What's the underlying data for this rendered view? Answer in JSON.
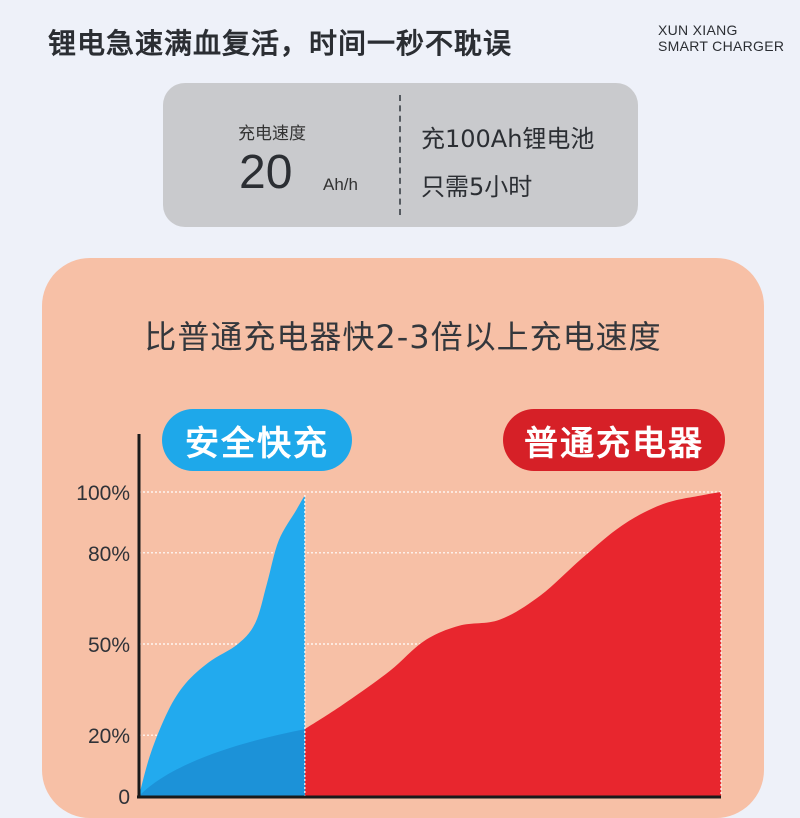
{
  "header": {
    "headline": "锂电急速满血复活，时间一秒不耽误",
    "brand_line1": "XUN XIANG",
    "brand_line2": "SMART CHARGER"
  },
  "spec": {
    "label": "充电速度",
    "value": "20",
    "unit": "Ah/h",
    "line1": "充100Ah锂电池",
    "line2": "只需5小时"
  },
  "panel": {
    "title": "比普通充电器快2-3倍以上充电速度",
    "pill_fast": "安全快充",
    "pill_normal": "普通充电器"
  },
  "colors": {
    "fast": "#22aaee",
    "fast_inner": "#1c92d8",
    "normal": "#e8262e",
    "panel": "#f7c0a6",
    "grid": "#ffffff"
  },
  "chart_data": {
    "type": "area",
    "y_ticks": [
      {
        "value": 100,
        "label": "100%"
      },
      {
        "value": 80,
        "label": "80%"
      },
      {
        "value": 50,
        "label": "50%"
      },
      {
        "value": 20,
        "label": "20%"
      },
      {
        "value": 0,
        "label": "0"
      }
    ],
    "ylim": [
      0,
      100
    ],
    "xlim": [
      0,
      1
    ],
    "grid": true,
    "series": [
      {
        "name": "安全快充",
        "x": [
          0,
          0.02,
          0.05,
          0.08,
          0.12,
          0.17,
          0.2,
          0.22,
          0.24,
          0.27,
          0.285
        ],
        "values": [
          0,
          14,
          28,
          37,
          44,
          50,
          57,
          70,
          84,
          94,
          99
        ]
      },
      {
        "name": "普通充电器",
        "x": [
          0.285,
          0.35,
          0.43,
          0.49,
          0.55,
          0.62,
          0.69,
          0.76,
          0.83,
          0.9,
          0.97,
          1.0
        ],
        "values": [
          22,
          30,
          41,
          51,
          56,
          58,
          66,
          78,
          89,
          96,
          99,
          100
        ]
      }
    ]
  }
}
